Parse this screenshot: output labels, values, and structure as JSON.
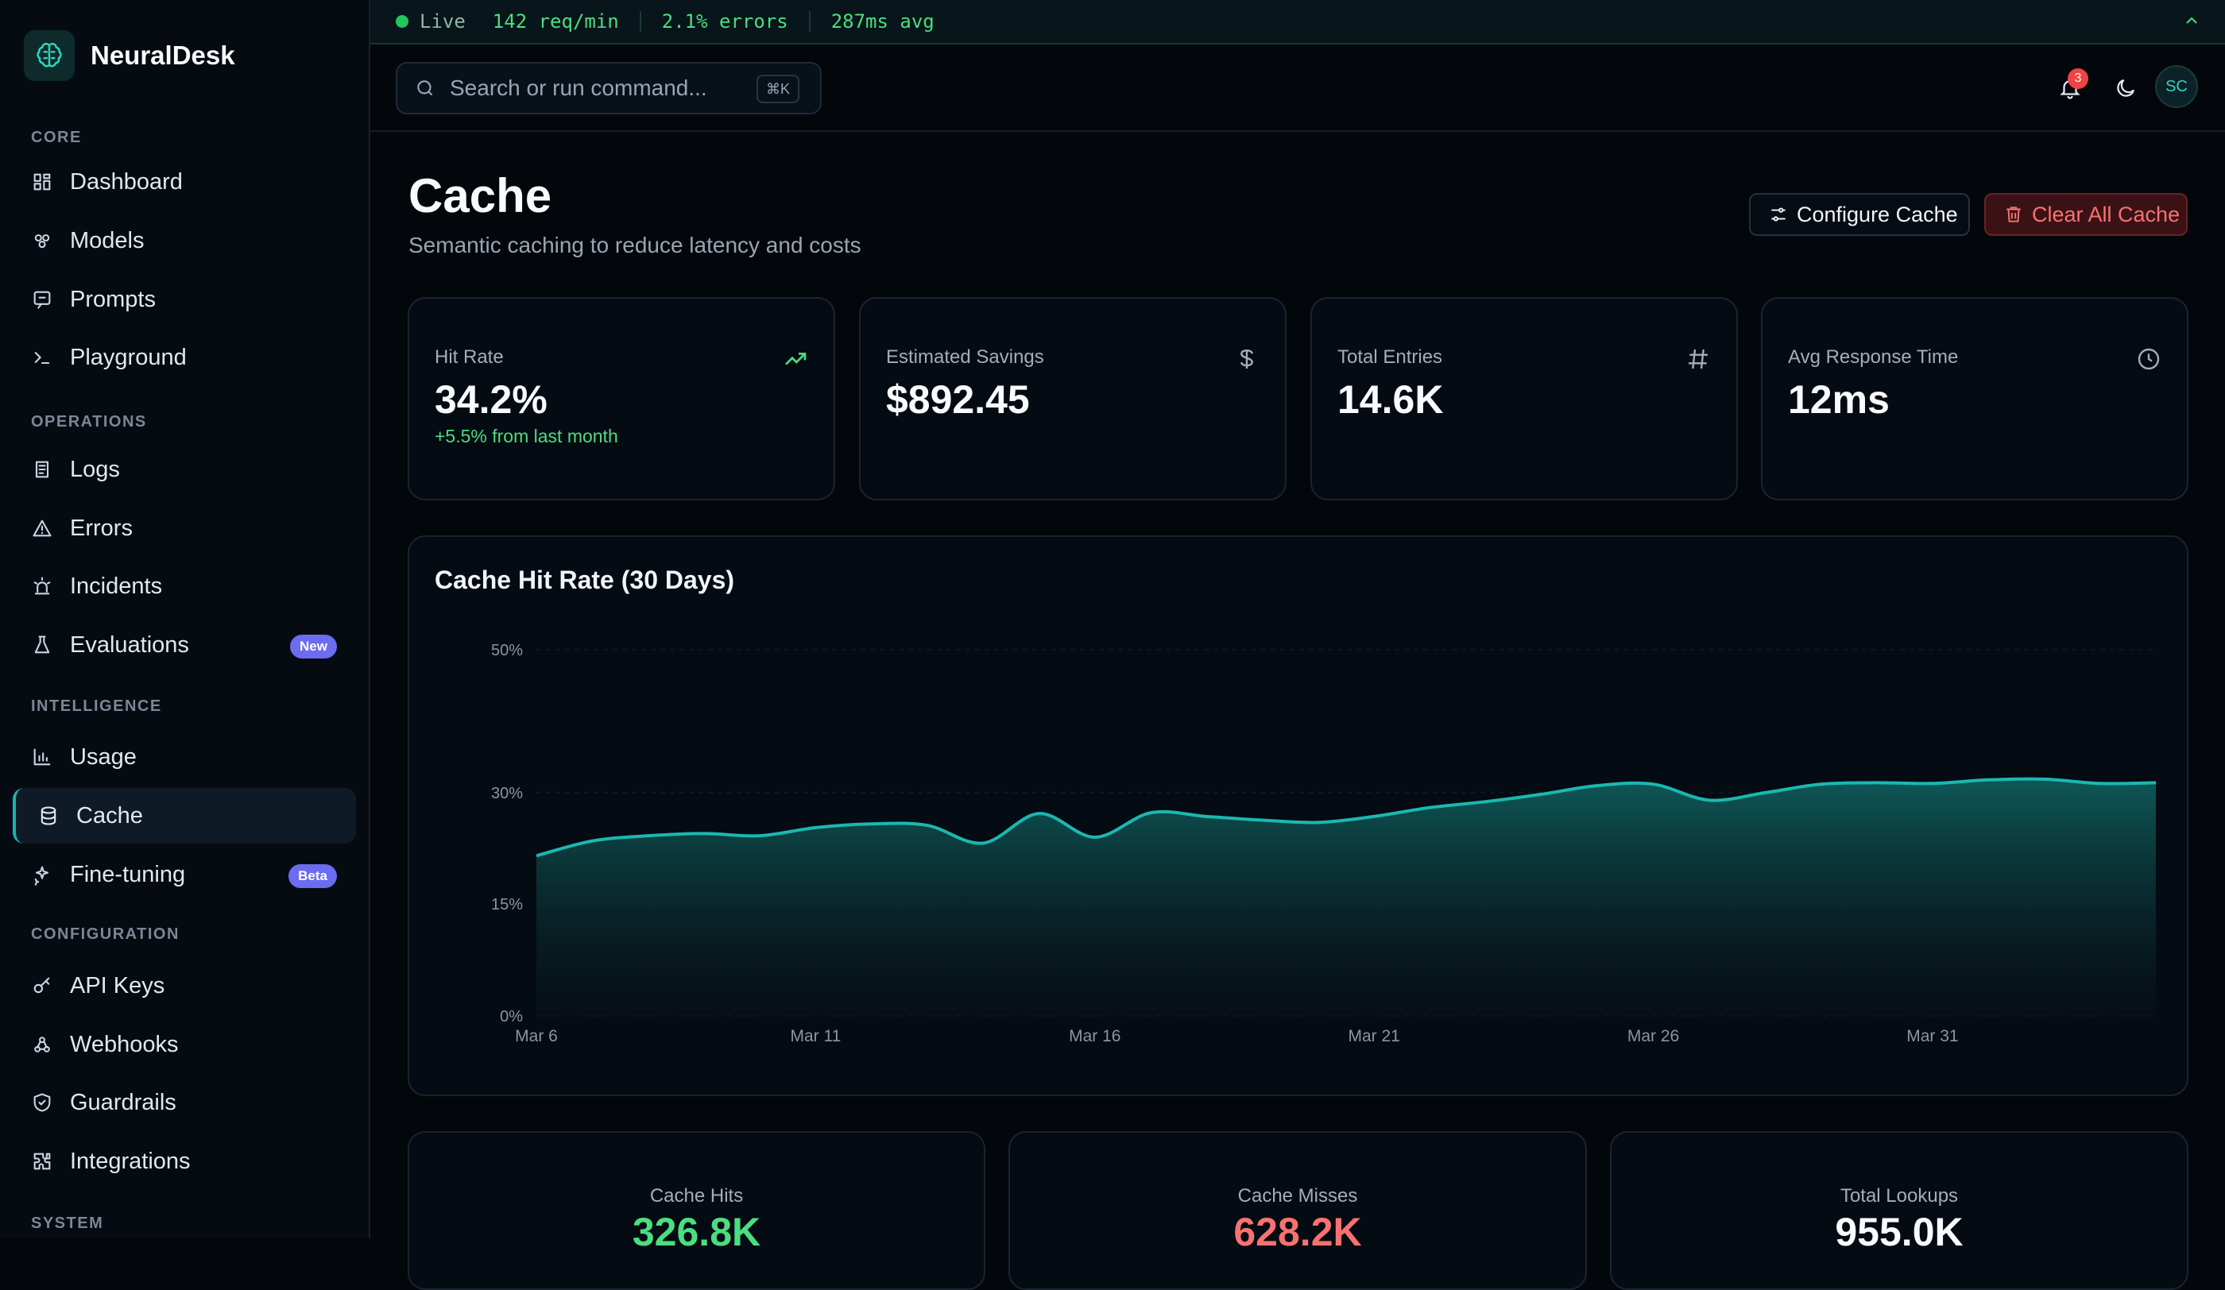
{
  "app": {
    "name": "NeuralDesk"
  },
  "sidebar": {
    "sections": [
      {
        "label": "CORE",
        "items": [
          {
            "label": "Dashboard",
            "icon": "dashboard-icon"
          },
          {
            "label": "Models",
            "icon": "models-icon"
          },
          {
            "label": "Prompts",
            "icon": "prompts-icon"
          },
          {
            "label": "Playground",
            "icon": "terminal-icon"
          }
        ]
      },
      {
        "label": "OPERATIONS",
        "items": [
          {
            "label": "Logs",
            "icon": "logs-icon"
          },
          {
            "label": "Errors",
            "icon": "warning-icon"
          },
          {
            "label": "Incidents",
            "icon": "siren-icon"
          },
          {
            "label": "Evaluations",
            "icon": "flask-icon",
            "badge": "New"
          }
        ]
      },
      {
        "label": "INTELLIGENCE",
        "items": [
          {
            "label": "Usage",
            "icon": "bar-chart-icon"
          },
          {
            "label": "Cache",
            "icon": "database-icon",
            "active": true
          },
          {
            "label": "Fine-tuning",
            "icon": "sparkles-icon",
            "badge": "Beta"
          }
        ]
      },
      {
        "label": "CONFIGURATION",
        "items": [
          {
            "label": "API Keys",
            "icon": "key-icon"
          },
          {
            "label": "Webhooks",
            "icon": "webhook-icon"
          },
          {
            "label": "Guardrails",
            "icon": "shield-icon"
          },
          {
            "label": "Integrations",
            "icon": "puzzle-icon"
          }
        ]
      },
      {
        "label": "SYSTEM",
        "items": []
      }
    ]
  },
  "status_bar": {
    "live": "Live",
    "req": "142 req/min",
    "errors": "2.1% errors",
    "latency": "287ms avg"
  },
  "header": {
    "search_placeholder": "Search or run command...",
    "shortcut": "⌘K",
    "notification_count": "3",
    "user_initials": "SC"
  },
  "page": {
    "title": "Cache",
    "subtitle": "Semantic caching to reduce latency and costs",
    "configure_label": "Configure Cache",
    "clear_label": "Clear All Cache"
  },
  "stats": [
    {
      "label": "Hit Rate",
      "value": "34.2%",
      "delta": "+5.5% from last month",
      "icon": "trending-up-icon"
    },
    {
      "label": "Estimated Savings",
      "value": "$892.45",
      "icon": "dollar-icon"
    },
    {
      "label": "Total Entries",
      "value": "14.6K",
      "icon": "hash-icon"
    },
    {
      "label": "Avg Response Time",
      "value": "12ms",
      "icon": "clock-icon"
    }
  ],
  "chart_data": {
    "type": "area",
    "title": "Cache Hit Rate (30 Days)",
    "x": [
      "Mar 6",
      "Mar 7",
      "Mar 8",
      "Mar 9",
      "Mar 10",
      "Mar 11",
      "Mar 12",
      "Mar 13",
      "Mar 14",
      "Mar 15",
      "Mar 16",
      "Mar 17",
      "Mar 18",
      "Mar 19",
      "Mar 20",
      "Mar 21",
      "Mar 22",
      "Mar 23",
      "Mar 24",
      "Mar 25",
      "Mar 26",
      "Mar 27",
      "Mar 28",
      "Mar 29",
      "Mar 30",
      "Mar 31",
      "Apr 1",
      "Apr 2",
      "Apr 3",
      "Apr 4"
    ],
    "x_ticks": [
      "Mar 6",
      "Mar 11",
      "Mar 16",
      "Mar 21",
      "Mar 26",
      "Mar 31"
    ],
    "y_ticks": [
      "0%",
      "15%",
      "30%",
      "50%"
    ],
    "y_tick_values": [
      0,
      15,
      30,
      50
    ],
    "ylim": [
      0,
      50
    ],
    "values": [
      21.5,
      23.5,
      24.2,
      24.5,
      24.2,
      25.3,
      25.8,
      25.6,
      23.2,
      27.2,
      24.0,
      27.3,
      26.8,
      26.3,
      26.0,
      26.8,
      28.0,
      28.8,
      29.8,
      31.0,
      31.2,
      29.0,
      30.0,
      31.2,
      31.4,
      31.3,
      31.8,
      31.9,
      31.3,
      31.4
    ],
    "color": "#1ab8b0"
  },
  "summary": [
    {
      "label": "Cache Hits",
      "value": "326.8K",
      "color": "#4ade80"
    },
    {
      "label": "Cache Misses",
      "value": "628.2K",
      "color": "#f87171"
    },
    {
      "label": "Total Lookups",
      "value": "955.0K",
      "color": "#f8fafc"
    }
  ]
}
